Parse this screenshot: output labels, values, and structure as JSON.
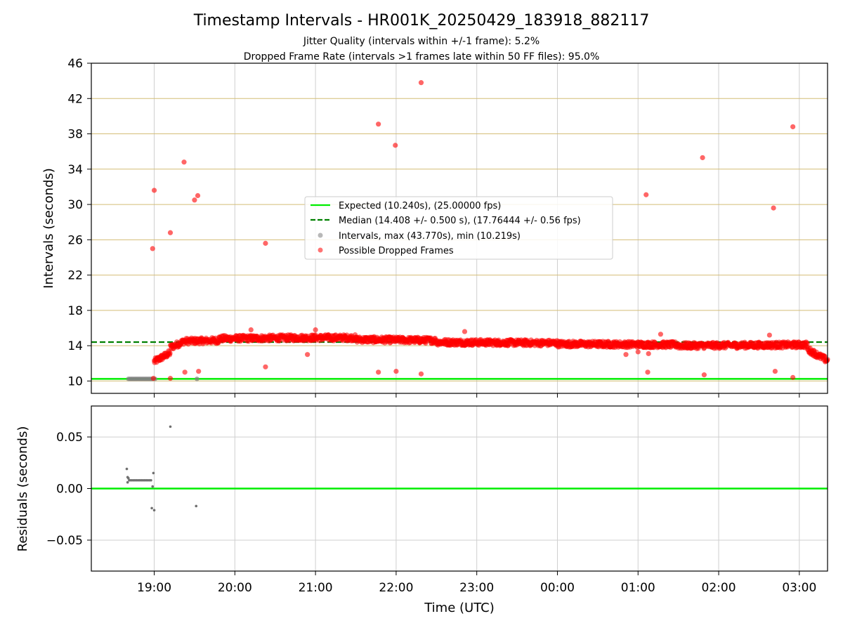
{
  "chart_data": {
    "type": "scatter",
    "title": "Timestamp Intervals - HR001K_20250429_183918_882117",
    "subtitles": [
      "Jitter Quality (intervals within +/-1 frame): 5.2%",
      "Dropped Frame Rate (intervals >1 frames late within 50 FF files): 95.0%"
    ],
    "xlabel": "Time (UTC)",
    "x_tick_labels": [
      "19:00",
      "20:00",
      "21:00",
      "22:00",
      "23:00",
      "00:00",
      "01:00",
      "02:00",
      "03:00"
    ],
    "x_tick_hours": [
      19,
      20,
      21,
      22,
      23,
      24,
      25,
      26,
      27
    ],
    "x_range_hours": [
      18.22,
      27.35
    ],
    "top_panel": {
      "ylabel": "Intervals (seconds)",
      "ylim": [
        8.6,
        46
      ],
      "y_ticks": [
        10,
        14,
        18,
        22,
        26,
        30,
        34,
        38,
        42,
        46
      ],
      "y_tick_labels": [
        "10",
        "14",
        "18",
        "22",
        "26",
        "30",
        "34",
        "38",
        "42",
        "46"
      ],
      "grid": true,
      "expected_line": 10.24,
      "median_line": 14.408,
      "legend": [
        {
          "label": "Expected (10.240s), (25.00000 fps)",
          "style": "solid",
          "color": "#00ee00"
        },
        {
          "label": "Median (14.408 +/- 0.500 s), (17.76444 +/- 0.56 fps)",
          "style": "dashed",
          "color": "#008000"
        },
        {
          "label": "Intervals, max (43.770s), min (10.219s)",
          "style": "marker",
          "color": "#9a9a9a"
        },
        {
          "label": "Possible Dropped Frames",
          "style": "marker",
          "color": "#ff0000"
        }
      ],
      "series": [
        {
          "name": "Intervals",
          "color": "#808080",
          "points": [
            [
              18.68,
              10.24
            ],
            [
              18.7,
              10.24
            ],
            [
              18.72,
              10.24
            ],
            [
              18.74,
              10.24
            ],
            [
              18.76,
              10.24
            ],
            [
              18.78,
              10.24
            ],
            [
              18.8,
              10.24
            ],
            [
              18.82,
              10.24
            ],
            [
              18.84,
              10.24
            ],
            [
              18.86,
              10.24
            ],
            [
              18.88,
              10.24
            ],
            [
              18.9,
              10.24
            ],
            [
              18.92,
              10.24
            ],
            [
              18.94,
              10.24
            ],
            [
              18.96,
              10.24
            ],
            [
              18.98,
              10.24
            ],
            [
              19.01,
              10.24
            ],
            [
              19.53,
              10.24
            ]
          ]
        },
        {
          "name": "Possible Dropped Frames",
          "color": "#ff0000",
          "band": {
            "segments": [
              [
                19.0,
                19.2,
                12.2,
                13.2
              ],
              [
                19.2,
                19.35,
                13.8,
                14.4
              ],
              [
                19.35,
                19.8,
                14.5,
                14.6
              ],
              [
                19.8,
                20.8,
                14.8,
                14.9
              ],
              [
                20.8,
                21.5,
                14.9,
                14.9
              ],
              [
                21.5,
                22.5,
                14.7,
                14.6
              ],
              [
                22.5,
                24.0,
                14.4,
                14.3
              ],
              [
                24.0,
                25.5,
                14.2,
                14.1
              ],
              [
                25.5,
                27.1,
                14.0,
                14.1
              ],
              [
                27.1,
                27.35,
                13.6,
                12.3
              ]
            ],
            "spread": 0.35,
            "samples": 1700
          },
          "outliers": [
            [
              19.0,
              31.6
            ],
            [
              18.98,
              25.0
            ],
            [
              19.2,
              26.8
            ],
            [
              19.37,
              34.8
            ],
            [
              19.5,
              30.5
            ],
            [
              19.54,
              31.0
            ],
            [
              20.38,
              25.6
            ],
            [
              21.78,
              39.1
            ],
            [
              21.99,
              36.7
            ],
            [
              22.31,
              43.8
            ],
            [
              25.1,
              31.1
            ],
            [
              25.8,
              35.3
            ],
            [
              26.68,
              29.6
            ],
            [
              26.92,
              38.8
            ],
            [
              19.38,
              11.0
            ],
            [
              19.55,
              11.1
            ],
            [
              19.2,
              10.3
            ],
            [
              18.99,
              10.3
            ],
            [
              20.38,
              11.6
            ],
            [
              21.78,
              11.0
            ],
            [
              22.0,
              11.1
            ],
            [
              22.31,
              10.8
            ],
            [
              25.12,
              11.0
            ],
            [
              25.82,
              10.7
            ],
            [
              26.7,
              11.1
            ],
            [
              26.92,
              10.4
            ],
            [
              20.9,
              13.0
            ],
            [
              21.0,
              15.8
            ],
            [
              22.85,
              15.6
            ],
            [
              25.13,
              13.1
            ],
            [
              25.28,
              15.3
            ],
            [
              26.63,
              15.2
            ],
            [
              25.0,
              13.3
            ],
            [
              20.2,
              15.8
            ],
            [
              24.85,
              13.0
            ]
          ]
        }
      ]
    },
    "bottom_panel": {
      "ylabel": "Residuals (seconds)",
      "ylim": [
        -0.08,
        0.08
      ],
      "y_ticks": [
        0.05,
        0.0,
        -0.05
      ],
      "y_tick_labels": [
        "0.05",
        "0.00",
        "−0.05"
      ],
      "grid": true,
      "zero_line": 0.0,
      "series": [
        {
          "name": "Residuals",
          "color": "#707070",
          "points": [
            [
              18.66,
              0.019
            ],
            [
              18.67,
              0.011
            ],
            [
              18.67,
              0.006
            ],
            [
              18.68,
              0.01
            ],
            [
              18.69,
              0.008
            ],
            [
              18.7,
              0.008
            ],
            [
              18.72,
              0.008
            ],
            [
              18.74,
              0.008
            ],
            [
              18.76,
              0.008
            ],
            [
              18.78,
              0.008
            ],
            [
              18.8,
              0.008
            ],
            [
              18.82,
              0.008
            ],
            [
              18.84,
              0.008
            ],
            [
              18.86,
              0.008
            ],
            [
              18.88,
              0.008
            ],
            [
              18.9,
              0.008
            ],
            [
              18.92,
              0.008
            ],
            [
              18.94,
              0.008
            ],
            [
              18.96,
              0.008
            ],
            [
              18.97,
              -0.019
            ],
            [
              18.99,
              0.015
            ],
            [
              18.98,
              0.002
            ],
            [
              19.0,
              -0.021
            ],
            [
              19.2,
              0.06
            ],
            [
              19.52,
              -0.017
            ]
          ]
        }
      ]
    }
  }
}
